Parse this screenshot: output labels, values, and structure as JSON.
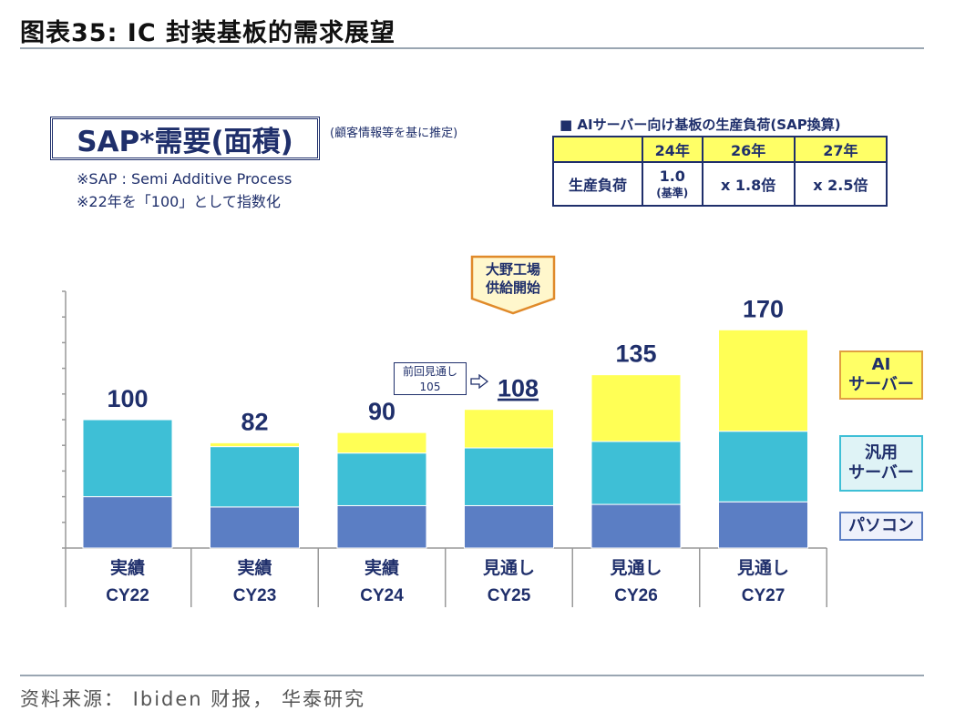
{
  "figure_title": "图表35:  IC 封装基板的需求展望",
  "source": "资料来源： Ibiden 财报， 华泰研究",
  "sap_title": "SAP*需要(面積)",
  "sap_note": "(顧客情報等を基に推定)",
  "definitions": [
    "※SAP : Semi Additive Process",
    "※22年を「100」として指数化"
  ],
  "load_table": {
    "title": "■ AIサーバー向け基板の生産負荷(SAP換算)",
    "columns": [
      "24年",
      "26年",
      "27年"
    ],
    "row_label": "生産負荷",
    "values": [
      "1.0",
      "x 1.8倍",
      "x 2.5倍"
    ],
    "baseline_note": "(基準)"
  },
  "callout": [
    "大野工場",
    "供給開始"
  ],
  "previous_forecast": {
    "label": "前回見通し",
    "value": "105"
  },
  "chart_data": {
    "type": "bar",
    "stacked": true,
    "categories": [
      "CY22",
      "CY23",
      "CY24",
      "CY25",
      "CY26",
      "CY27"
    ],
    "category_status": [
      "実績",
      "実績",
      "実績",
      "見通し",
      "見通し",
      "見通し"
    ],
    "totals": [
      100,
      82,
      90,
      108,
      135,
      170
    ],
    "series": [
      {
        "name": "パソコン",
        "color": "#5b7ec4",
        "values": [
          40,
          32,
          33,
          33,
          34,
          36
        ]
      },
      {
        "name": "汎用サーバー",
        "color": "#3ebfd6",
        "values": [
          60,
          47,
          41,
          45,
          49,
          55
        ]
      },
      {
        "name": "AIサーバー",
        "color": "#ffff55",
        "values": [
          0,
          3,
          16,
          30,
          52,
          79
        ]
      }
    ],
    "legend_labels": [
      [
        "AI",
        "サーバー"
      ],
      [
        "汎用",
        "サーバー"
      ],
      [
        "パソコン"
      ]
    ],
    "ylim": [
      0,
      200
    ],
    "yticks": [
      0,
      20,
      40,
      60,
      80,
      100,
      120,
      140,
      160,
      180,
      200
    ],
    "highlighted_total_index": 3
  }
}
